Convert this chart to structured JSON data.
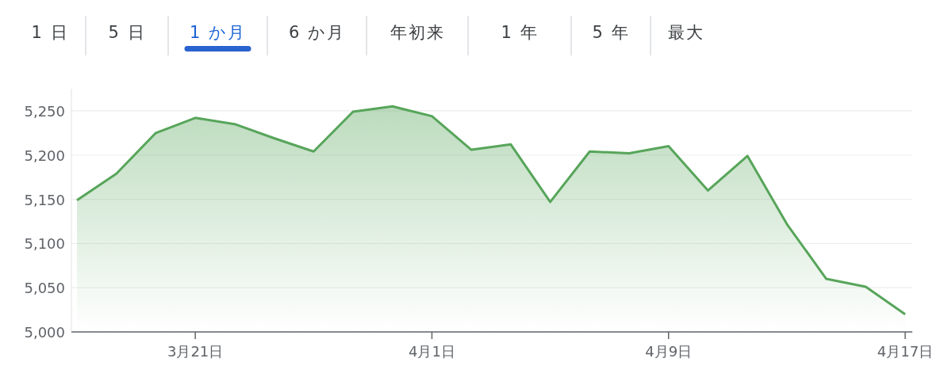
{
  "chart_data": {
    "type": "area",
    "categories": [
      null,
      null,
      null,
      "3月21日",
      null,
      null,
      null,
      null,
      null,
      "4月1日",
      null,
      null,
      null,
      null,
      null,
      "4月9日",
      null,
      null,
      null,
      null,
      null,
      "4月17日"
    ],
    "values": [
      5149,
      5179,
      5225,
      5242,
      5235,
      5219,
      5204,
      5249,
      5255,
      5244,
      5206,
      5212,
      5147,
      5204,
      5202,
      5210,
      5160,
      5199,
      5122,
      5060,
      5051,
      5020
    ],
    "color": "#57a55a",
    "ylim": [
      5000,
      5275
    ],
    "yticks": [
      {
        "value": 5000,
        "label": "5,000"
      },
      {
        "value": 5050,
        "label": "5,050"
      },
      {
        "value": 5100,
        "label": "5,100"
      },
      {
        "value": 5150,
        "label": "5,150"
      },
      {
        "value": 5200,
        "label": "5,200"
      },
      {
        "value": 5250,
        "label": "5,250"
      }
    ],
    "grid": "y",
    "annotations": [
      "1 日",
      "5 日",
      "1 か月",
      "6 か月",
      "年初来",
      "1 年",
      "5 年",
      "最大"
    ]
  }
}
